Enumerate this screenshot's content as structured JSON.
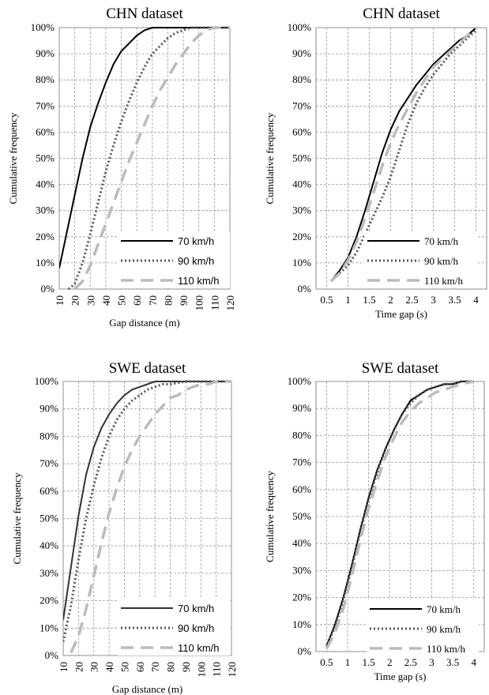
{
  "chart_data": [
    {
      "type": "line",
      "title": "CHN dataset",
      "xlabel": "Gap distance (m)",
      "ylabel": "Cumulative frequency",
      "xlim": [
        10,
        120
      ],
      "xticks": [
        10,
        20,
        30,
        40,
        50,
        60,
        70,
        80,
        90,
        100,
        110,
        120
      ],
      "ylim": [
        0,
        100
      ],
      "yticks": [
        0,
        10,
        20,
        30,
        40,
        50,
        60,
        70,
        80,
        90,
        100
      ],
      "ytick_suffix": "%",
      "grid": true,
      "legend_position": "bottom-right",
      "series": [
        {
          "name": "70 km/h",
          "color": "#000000",
          "style": "solid",
          "x": [
            10,
            15,
            20,
            25,
            30,
            35,
            40,
            45,
            50,
            55,
            60,
            65,
            70,
            75,
            80,
            85,
            90,
            100,
            110,
            120
          ],
          "y": [
            8,
            22,
            36,
            50,
            62,
            71,
            79,
            86,
            91,
            94,
            97,
            99,
            100,
            100,
            100,
            100,
            100,
            100,
            100,
            100
          ]
        },
        {
          "name": "90 km/h",
          "color": "#555555",
          "style": "dotted",
          "x": [
            16,
            20,
            25,
            30,
            35,
            40,
            45,
            50,
            55,
            60,
            65,
            70,
            75,
            80,
            85,
            90,
            95,
            100,
            110,
            120
          ],
          "y": [
            0,
            2,
            10,
            21,
            33,
            45,
            55,
            64,
            72,
            79,
            85,
            90,
            93,
            96,
            98,
            99,
            100,
            100,
            100,
            100
          ]
        },
        {
          "name": "110 km/h",
          "color": "#bbbbbb",
          "style": "dashed",
          "x": [
            20,
            25,
            30,
            35,
            40,
            45,
            50,
            55,
            60,
            65,
            70,
            75,
            80,
            85,
            90,
            95,
            100,
            105,
            110,
            115,
            120
          ],
          "y": [
            0,
            3,
            9,
            17,
            25,
            33,
            41,
            49,
            56,
            63,
            70,
            76,
            81,
            86,
            90,
            94,
            97,
            99,
            100,
            100,
            100
          ]
        }
      ]
    },
    {
      "type": "line",
      "title": "CHN dataset",
      "xlabel": "Time gap (s)",
      "ylabel": "Cumulative frequency",
      "xlim": [
        0.25,
        4.25
      ],
      "xticks": [
        0.5,
        1,
        1.5,
        2,
        2.5,
        3,
        3.5,
        4
      ],
      "ylim": [
        0,
        100
      ],
      "yticks": [
        0,
        10,
        20,
        30,
        40,
        50,
        60,
        70,
        80,
        90,
        100
      ],
      "ytick_suffix": "%",
      "grid": true,
      "legend_position": "bottom-right",
      "series": [
        {
          "name": "70 km/h",
          "color": "#000000",
          "style": "solid",
          "x": [
            0.6,
            0.8,
            1.0,
            1.2,
            1.4,
            1.6,
            1.8,
            2.0,
            2.2,
            2.4,
            2.6,
            2.8,
            3.0,
            3.2,
            3.4,
            3.6,
            3.8,
            4.0
          ],
          "y": [
            3,
            7,
            12,
            20,
            30,
            41,
            52,
            61,
            68,
            73,
            78,
            82,
            86,
            89,
            92,
            95,
            97,
            100
          ]
        },
        {
          "name": "90 km/h",
          "color": "#555555",
          "style": "dotted",
          "x": [
            0.6,
            0.8,
            1.0,
            1.2,
            1.4,
            1.6,
            1.8,
            2.0,
            2.2,
            2.4,
            2.6,
            2.8,
            3.0,
            3.2,
            3.4,
            3.6,
            3.8,
            4.0
          ],
          "y": [
            3,
            6,
            9,
            14,
            21,
            28,
            35,
            43,
            53,
            63,
            71,
            77,
            82,
            86,
            90,
            93,
            96,
            99
          ]
        },
        {
          "name": "110 km/h",
          "color": "#bbbbbb",
          "style": "dashed",
          "x": [
            0.6,
            0.8,
            1.0,
            1.2,
            1.4,
            1.6,
            1.8,
            2.0,
            2.2,
            2.4,
            2.6,
            2.8,
            3.0,
            3.2,
            3.4,
            3.6,
            3.8,
            4.0
          ],
          "y": [
            3,
            6,
            11,
            18,
            27,
            37,
            47,
            56,
            63,
            69,
            75,
            80,
            85,
            88,
            91,
            94,
            97,
            100
          ]
        }
      ]
    },
    {
      "type": "line",
      "title": "SWE dataset",
      "xlabel": "Gap distance (m)",
      "ylabel": "Cumulative frequency",
      "xlim": [
        10,
        120
      ],
      "xticks": [
        10,
        20,
        30,
        40,
        50,
        60,
        70,
        80,
        90,
        100,
        110,
        120
      ],
      "ylim": [
        0,
        100
      ],
      "yticks": [
        0,
        10,
        20,
        30,
        40,
        50,
        60,
        70,
        80,
        90,
        100
      ],
      "ytick_suffix": "%",
      "grid": true,
      "legend_position": "bottom-right",
      "series": [
        {
          "name": "70 km/h",
          "color": "#333333",
          "style": "solid",
          "x": [
            10,
            15,
            20,
            25,
            30,
            35,
            40,
            45,
            50,
            55,
            60,
            65,
            70,
            75,
            80,
            90,
            100,
            110,
            120
          ],
          "y": [
            13,
            32,
            51,
            66,
            76,
            83,
            88,
            92,
            95,
            97,
            98,
            99,
            100,
            100,
            100,
            100,
            100,
            100,
            100
          ]
        },
        {
          "name": "90 km/h",
          "color": "#555555",
          "style": "dotted",
          "x": [
            10,
            15,
            20,
            25,
            30,
            35,
            40,
            45,
            50,
            55,
            60,
            65,
            70,
            75,
            80,
            90,
            100,
            110,
            120
          ],
          "y": [
            5,
            18,
            35,
            50,
            62,
            72,
            80,
            86,
            90,
            93,
            95,
            97,
            98,
            99,
            99,
            100,
            100,
            100,
            100
          ]
        },
        {
          "name": "110 km/h",
          "color": "#bbbbbb",
          "style": "dashed",
          "x": [
            15,
            20,
            25,
            30,
            35,
            40,
            45,
            50,
            55,
            60,
            65,
            70,
            75,
            80,
            85,
            90,
            95,
            100,
            105,
            110,
            115,
            120
          ],
          "y": [
            1,
            7,
            17,
            29,
            41,
            52,
            61,
            69,
            75,
            80,
            84,
            88,
            91,
            94,
            95,
            97,
            98,
            99,
            99,
            100,
            100,
            100
          ]
        }
      ]
    },
    {
      "type": "line",
      "title": "SWE dataset",
      "xlabel": "Time gap (s)",
      "ylabel": "Cumulative frequency",
      "xlim": [
        0.25,
        4.25
      ],
      "xticks": [
        0.5,
        1,
        1.5,
        2,
        2.5,
        3,
        3.5,
        4
      ],
      "ylim": [
        0,
        100
      ],
      "yticks": [
        0,
        10,
        20,
        30,
        40,
        50,
        60,
        70,
        80,
        90,
        100
      ],
      "ytick_suffix": "%",
      "grid": true,
      "legend_position": "bottom-right",
      "series": [
        {
          "name": "70 km/h",
          "color": "#000000",
          "style": "solid",
          "x": [
            0.5,
            0.7,
            0.9,
            1.1,
            1.3,
            1.5,
            1.7,
            1.9,
            2.1,
            2.3,
            2.5,
            2.7,
            2.9,
            3.1,
            3.3,
            3.5,
            3.7,
            4.0
          ],
          "y": [
            2,
            10,
            20,
            32,
            45,
            57,
            67,
            75,
            82,
            88,
            93,
            95,
            97,
            98,
            99,
            99,
            100,
            100
          ]
        },
        {
          "name": "90 km/h",
          "color": "#555555",
          "style": "dotted",
          "x": [
            0.5,
            0.7,
            0.9,
            1.1,
            1.3,
            1.5,
            1.7,
            1.9,
            2.1,
            2.3,
            2.5,
            2.7,
            2.9,
            3.1,
            3.3,
            3.5,
            3.7,
            4.0
          ],
          "y": [
            2,
            9,
            19,
            31,
            44,
            56,
            66,
            75,
            82,
            88,
            92,
            95,
            97,
            98,
            99,
            99,
            100,
            100
          ]
        },
        {
          "name": "110 km/h",
          "color": "#bbbbbb",
          "style": "dashed",
          "x": [
            0.5,
            0.7,
            0.9,
            1.1,
            1.3,
            1.5,
            1.7,
            1.9,
            2.1,
            2.3,
            2.5,
            2.7,
            2.9,
            3.1,
            3.3,
            3.5,
            3.7,
            4.0
          ],
          "y": [
            1,
            7,
            16,
            28,
            41,
            53,
            63,
            72,
            79,
            85,
            89,
            92,
            94,
            96,
            97,
            98,
            99,
            100
          ]
        }
      ]
    }
  ]
}
